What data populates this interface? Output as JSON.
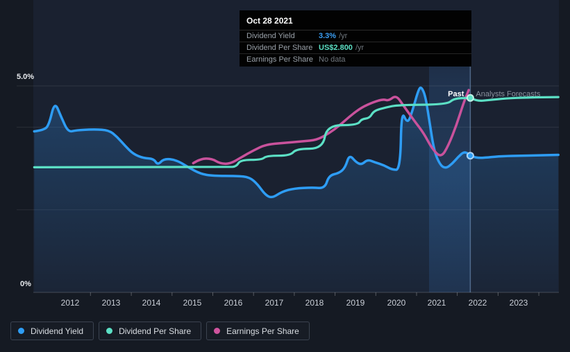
{
  "tooltip": {
    "date": "Oct 28 2021",
    "rows": [
      {
        "label": "Dividend Yield",
        "value": "3.3%",
        "suffix": "/yr",
        "value_color": "#3ba0f6"
      },
      {
        "label": "Dividend Per Share",
        "value": "US$2.800",
        "suffix": "/yr",
        "value_color": "#5ce0c5"
      },
      {
        "label": "Earnings Per Share",
        "value": "No data",
        "suffix": "",
        "value_color": "#70777e"
      }
    ]
  },
  "annotations": {
    "past_label": "Past",
    "forecast_label": "Analysts Forecasts"
  },
  "legend": [
    {
      "label": "Dividend Yield",
      "color": "#2e9df5"
    },
    {
      "label": "Dividend Per Share",
      "color": "#5ce0c5"
    },
    {
      "label": "Earnings Per Share",
      "color": "#d0549e"
    }
  ],
  "chart_data": {
    "type": "line",
    "title": "Dividend history and forecast",
    "x_axis": {
      "tick_years": [
        2012,
        2013,
        2014,
        2015,
        2016,
        2017,
        2018,
        2019,
        2020,
        2021,
        2022,
        2023
      ],
      "range_years": [
        2011.1,
        2024.0
      ]
    },
    "y_axis": {
      "top_label": "5.0%",
      "bottom_label": "0%",
      "range_pct": [
        0,
        5.0
      ],
      "gridlines_pct": [
        5,
        4,
        2
      ],
      "grid": true
    },
    "divider": {
      "date": "Oct 28 2021",
      "year": 2021.82
    },
    "highlight_band_years": [
      2020.8,
      2021.82
    ],
    "legend_position": "bottom-left",
    "series": [
      {
        "name": "Dividend Yield",
        "color": "#2e9df5",
        "unit": "%",
        "area_fill": true,
        "value_at_divider": "3.3% /yr",
        "marker": [
          2021.82,
          3.31
        ],
        "past": [
          [
            2011.12,
            3.9
          ],
          [
            2011.35,
            3.93
          ],
          [
            2011.48,
            4.05
          ],
          [
            2011.62,
            4.63
          ],
          [
            2011.78,
            4.25
          ],
          [
            2011.95,
            3.88
          ],
          [
            2012.15,
            3.93
          ],
          [
            2012.6,
            3.95
          ],
          [
            2012.95,
            3.93
          ],
          [
            2013.15,
            3.77
          ],
          [
            2013.35,
            3.55
          ],
          [
            2013.55,
            3.35
          ],
          [
            2013.8,
            3.25
          ],
          [
            2014.05,
            3.24
          ],
          [
            2014.15,
            3.08
          ],
          [
            2014.3,
            3.24
          ],
          [
            2014.6,
            3.21
          ],
          [
            2014.9,
            3.03
          ],
          [
            2015.2,
            2.87
          ],
          [
            2015.5,
            2.82
          ],
          [
            2016.1,
            2.82
          ],
          [
            2016.4,
            2.79
          ],
          [
            2016.6,
            2.62
          ],
          [
            2016.78,
            2.37
          ],
          [
            2016.95,
            2.28
          ],
          [
            2017.2,
            2.44
          ],
          [
            2017.5,
            2.52
          ],
          [
            2017.95,
            2.54
          ],
          [
            2018.25,
            2.52
          ],
          [
            2018.35,
            2.83
          ],
          [
            2018.6,
            2.89
          ],
          [
            2018.75,
            3.02
          ],
          [
            2018.85,
            3.34
          ],
          [
            2019.02,
            3.15
          ],
          [
            2019.15,
            3.09
          ],
          [
            2019.3,
            3.22
          ],
          [
            2019.48,
            3.15
          ],
          [
            2019.7,
            3.08
          ],
          [
            2019.9,
            2.97
          ],
          [
            2020.1,
            2.97
          ],
          [
            2020.13,
            4.42
          ],
          [
            2020.28,
            4.07
          ],
          [
            2020.4,
            4.4
          ],
          [
            2020.55,
            4.92
          ],
          [
            2020.62,
            4.98
          ],
          [
            2020.72,
            4.75
          ],
          [
            2020.82,
            4.12
          ],
          [
            2020.93,
            3.43
          ],
          [
            2021.08,
            3.08
          ],
          [
            2021.22,
            3.0
          ],
          [
            2021.38,
            3.12
          ],
          [
            2021.52,
            3.28
          ],
          [
            2021.68,
            3.42
          ],
          [
            2021.82,
            3.31
          ]
        ],
        "forecast": [
          [
            2021.82,
            3.31
          ],
          [
            2021.98,
            3.25
          ],
          [
            2022.25,
            3.27
          ],
          [
            2022.6,
            3.3
          ],
          [
            2023.1,
            3.31
          ],
          [
            2023.6,
            3.32
          ],
          [
            2023.98,
            3.33
          ]
        ]
      },
      {
        "name": "Dividend Per Share",
        "color": "#5ce0c5",
        "unit": "US$ (plotted on % axis)",
        "area_fill": false,
        "value_at_divider": "US$2.800 /yr",
        "marker": [
          2021.82,
          4.71
        ],
        "past": [
          [
            2011.12,
            3.03
          ],
          [
            2015.9,
            3.03
          ],
          [
            2016.08,
            3.05
          ],
          [
            2016.18,
            3.21
          ],
          [
            2016.7,
            3.21
          ],
          [
            2016.82,
            3.31
          ],
          [
            2017.4,
            3.31
          ],
          [
            2017.55,
            3.48
          ],
          [
            2018.2,
            3.48
          ],
          [
            2018.3,
            4.05
          ],
          [
            2019.05,
            4.05
          ],
          [
            2019.15,
            4.2
          ],
          [
            2019.35,
            4.22
          ],
          [
            2019.45,
            4.4
          ],
          [
            2019.75,
            4.48
          ],
          [
            2020.05,
            4.54
          ],
          [
            2021.25,
            4.55
          ],
          [
            2021.42,
            4.7
          ],
          [
            2021.82,
            4.71
          ]
        ],
        "forecast": [
          [
            2021.82,
            4.71
          ],
          [
            2021.98,
            4.63
          ],
          [
            2022.3,
            4.66
          ],
          [
            2022.7,
            4.7
          ],
          [
            2023.2,
            4.72
          ],
          [
            2023.98,
            4.73
          ]
        ]
      },
      {
        "name": "Earnings Per Share",
        "color": "#c9529c",
        "unit": "plotted on % axis",
        "area_fill": false,
        "value_at_divider": "No data",
        "past": [
          [
            2015.02,
            3.13
          ],
          [
            2015.2,
            3.24
          ],
          [
            2015.48,
            3.24
          ],
          [
            2015.68,
            3.12
          ],
          [
            2015.92,
            3.11
          ],
          [
            2016.2,
            3.27
          ],
          [
            2016.5,
            3.44
          ],
          [
            2016.8,
            3.58
          ],
          [
            2017.25,
            3.62
          ],
          [
            2017.7,
            3.66
          ],
          [
            2018.05,
            3.69
          ],
          [
            2018.35,
            3.85
          ],
          [
            2018.62,
            4.05
          ],
          [
            2018.88,
            4.28
          ],
          [
            2019.15,
            4.48
          ],
          [
            2019.45,
            4.61
          ],
          [
            2019.68,
            4.68
          ],
          [
            2019.82,
            4.64
          ],
          [
            2020.0,
            4.78
          ],
          [
            2020.18,
            4.52
          ],
          [
            2020.45,
            4.15
          ],
          [
            2020.68,
            3.85
          ],
          [
            2020.88,
            3.48
          ],
          [
            2021.1,
            3.26
          ],
          [
            2021.28,
            3.55
          ],
          [
            2021.48,
            4.05
          ],
          [
            2021.65,
            4.58
          ],
          [
            2021.78,
            4.9
          ]
        ],
        "forecast": []
      }
    ]
  }
}
